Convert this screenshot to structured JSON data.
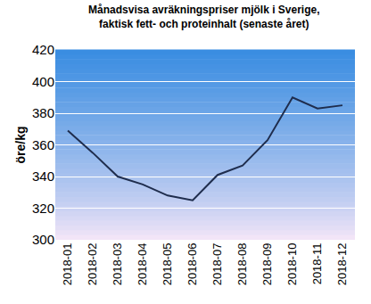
{
  "chart_data": {
    "type": "line",
    "title": "Månadsvisa avräkningspriser mjölk i Sverige,\nfaktisk fett- och proteinhalt (senaste året)",
    "y_label": "öre/kg",
    "categories": [
      "2018-01",
      "2018-02",
      "2018-03",
      "2018-04",
      "2018-05",
      "2018-06",
      "2018-07",
      "2018-08",
      "2018-09",
      "2018-10",
      "2018-11",
      "2018-12"
    ],
    "values": [
      369,
      355,
      340,
      335,
      328,
      325,
      341,
      347,
      363,
      390,
      383,
      385
    ],
    "color": "#1f2d4d",
    "ylim": [
      300,
      420
    ],
    "yticks": [
      300,
      320,
      340,
      360,
      380,
      400,
      420
    ],
    "grid": true
  }
}
